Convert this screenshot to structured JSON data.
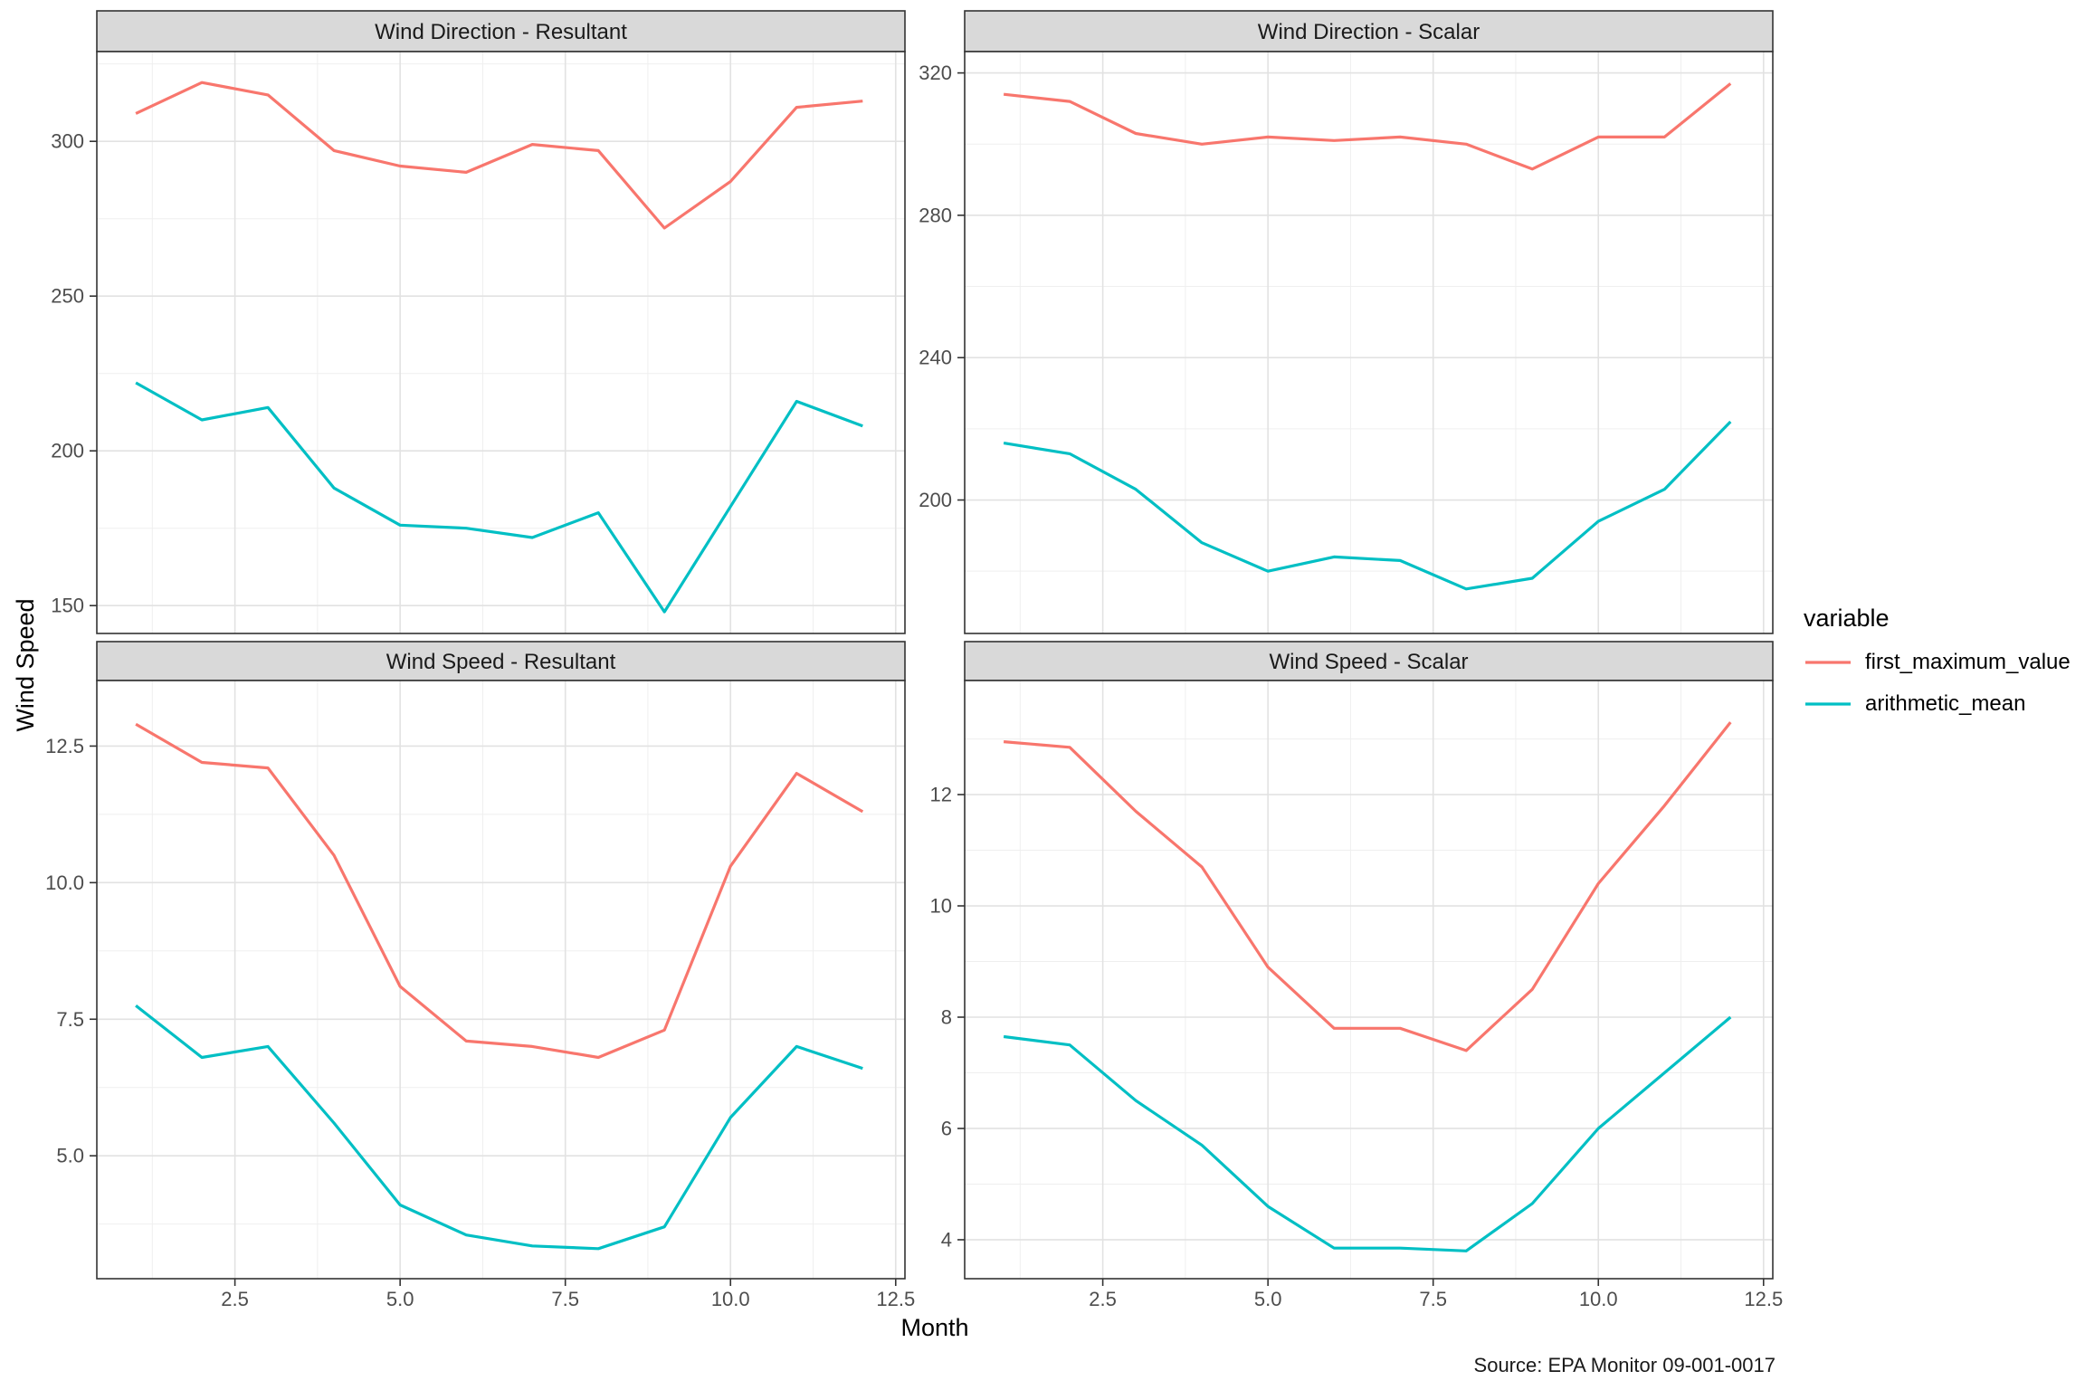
{
  "figure": {
    "y_axis_title": "Wind Speed",
    "x_axis_title": "Month",
    "caption": "Source: EPA Monitor 09-001-0017"
  },
  "legend": {
    "title": "variable",
    "items": [
      {
        "label": "first_maximum_value",
        "color": "#F8766D"
      },
      {
        "label": "arithmetic_mean",
        "color": "#00BFC4"
      }
    ]
  },
  "style": {
    "strip_bg": "#D9D9D9",
    "strip_text": "#1a1a1a",
    "border": "#333333",
    "axis_text": "#4D4D4D",
    "grid_major": "#E2E2E2",
    "grid_minor": "#EFEFEF",
    "panel_bg": "#FFFFFF"
  },
  "chart_data": {
    "type": "line",
    "facet_rows": [
      "Wind Direction",
      "Wind Speed"
    ],
    "facet_cols": [
      "Resultant",
      "Scalar"
    ],
    "xlabel": "Month",
    "ylabel": "Wind Speed",
    "legend_position": "right",
    "grid": true,
    "x": [
      1,
      2,
      3,
      4,
      5,
      6,
      7,
      8,
      9,
      10,
      11,
      12
    ],
    "x_ticks": [
      2.5,
      5.0,
      7.5,
      10.0,
      12.5
    ],
    "x_tick_labels": [
      "2.5",
      "5.0",
      "7.5",
      "10.0",
      "12.5"
    ],
    "x_range": [
      0.41,
      12.64
    ],
    "panels": [
      {
        "title": "Wind Direction - Resultant",
        "row": 0,
        "col": 0,
        "y_ticks": [
          150,
          200,
          250,
          300
        ],
        "y_tick_labels": [
          "150",
          "200",
          "250",
          "300"
        ],
        "y_range": [
          141,
          329
        ],
        "series": [
          {
            "name": "first_maximum_value",
            "values": [
              309,
              319,
              315,
              297,
              292,
              290,
              299,
              297,
              272,
              287,
              311,
              313
            ]
          },
          {
            "name": "arithmetic_mean",
            "values": [
              222,
              210,
              214,
              188,
              176,
              175,
              172,
              180,
              148,
              182,
              216,
              208
            ]
          }
        ]
      },
      {
        "title": "Wind Direction - Scalar",
        "row": 0,
        "col": 1,
        "y_ticks": [
          200,
          240,
          280,
          320
        ],
        "y_tick_labels": [
          "200",
          "240",
          "280",
          "320"
        ],
        "y_range": [
          162.5,
          326
        ],
        "series": [
          {
            "name": "first_maximum_value",
            "values": [
              314,
              312,
              303,
              300,
              302,
              301,
              302,
              300,
              293,
              302,
              302,
              317
            ]
          },
          {
            "name": "arithmetic_mean",
            "values": [
              216,
              213,
              203,
              188,
              180,
              184,
              183,
              175,
              178,
              194,
              203,
              222
            ]
          }
        ]
      },
      {
        "title": "Wind Speed - Resultant",
        "row": 1,
        "col": 0,
        "y_ticks": [
          5.0,
          7.5,
          10.0,
          12.5
        ],
        "y_tick_labels": [
          "5.0",
          "7.5",
          "10.0",
          "12.5"
        ],
        "y_range": [
          2.75,
          13.7
        ],
        "series": [
          {
            "name": "first_maximum_value",
            "values": [
              12.9,
              12.2,
              12.1,
              10.5,
              8.1,
              7.1,
              7.0,
              6.8,
              7.3,
              10.3,
              12.0,
              11.3
            ]
          },
          {
            "name": "arithmetic_mean",
            "values": [
              7.75,
              6.8,
              7.0,
              5.6,
              4.1,
              3.55,
              3.35,
              3.3,
              3.7,
              5.7,
              7.0,
              6.6
            ]
          }
        ]
      },
      {
        "title": "Wind Speed - Scalar",
        "row": 1,
        "col": 1,
        "y_ticks": [
          4,
          6,
          8,
          10,
          12
        ],
        "y_tick_labels": [
          "4",
          "6",
          "8",
          "10",
          "12"
        ],
        "y_range": [
          3.3,
          14.05
        ],
        "series": [
          {
            "name": "first_maximum_value",
            "values": [
              12.95,
              12.85,
              11.7,
              10.7,
              8.9,
              7.8,
              7.8,
              7.4,
              8.5,
              10.4,
              11.8,
              13.3
            ]
          },
          {
            "name": "arithmetic_mean",
            "values": [
              7.65,
              7.5,
              6.5,
              5.7,
              4.6,
              3.85,
              3.85,
              3.8,
              4.65,
              6.0,
              7.0,
              8.0
            ]
          }
        ]
      }
    ]
  }
}
